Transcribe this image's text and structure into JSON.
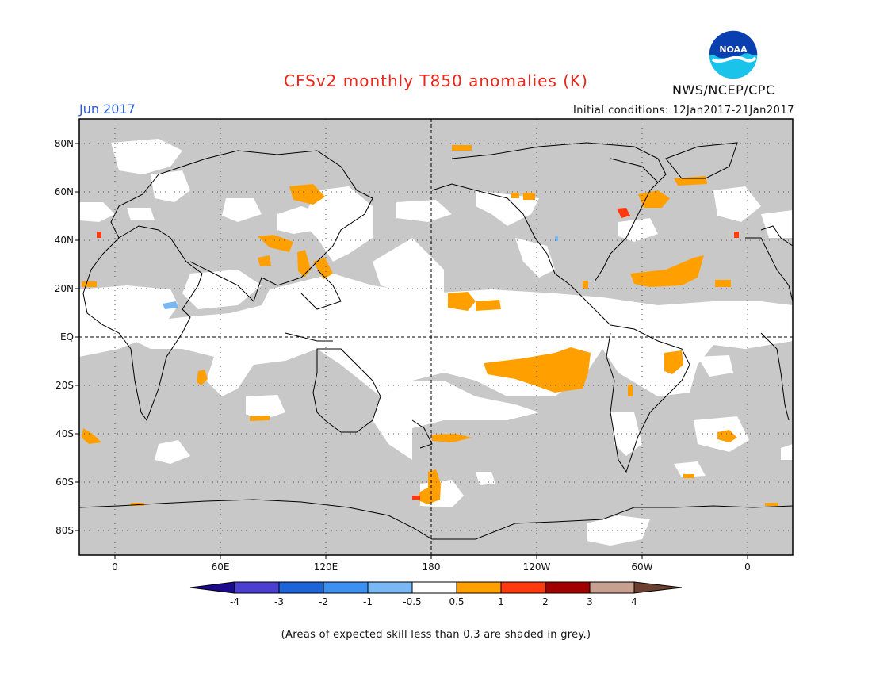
{
  "title": "CFSv2 monthly T850 anomalies (K)",
  "month": "Jun 2017",
  "initial_conditions": "Initial conditions: 12Jan2017-21Jan2017",
  "org": "NWS/NCEP/CPC",
  "logo_text": "NOAA",
  "lat_labels": [
    "80N",
    "60N",
    "40N",
    "20N",
    "EQ",
    "20S",
    "40S",
    "60S",
    "80S"
  ],
  "lon_labels": [
    "0",
    "60E",
    "120E",
    "180",
    "120W",
    "60W",
    "0"
  ],
  "colorbar": {
    "labels": [
      "-4",
      "-3",
      "-2",
      "-1",
      "-0.5",
      "0.5",
      "1",
      "2",
      "3",
      "4"
    ],
    "colors": [
      "#1c0a8c",
      "#4a3fd0",
      "#1f63d8",
      "#3d8ff0",
      "#7ab8f4",
      "#ffffff",
      "#ffa000",
      "#ff3a10",
      "#a00000",
      "#c8a090",
      "#6b4030"
    ]
  },
  "note": "(Areas of expected skill less than 0.3 are shaded in grey.)",
  "colors": {
    "skill_grey": "#c8c8c8",
    "title_red": "#e8261c",
    "month_blue": "#2a5bd7"
  }
}
